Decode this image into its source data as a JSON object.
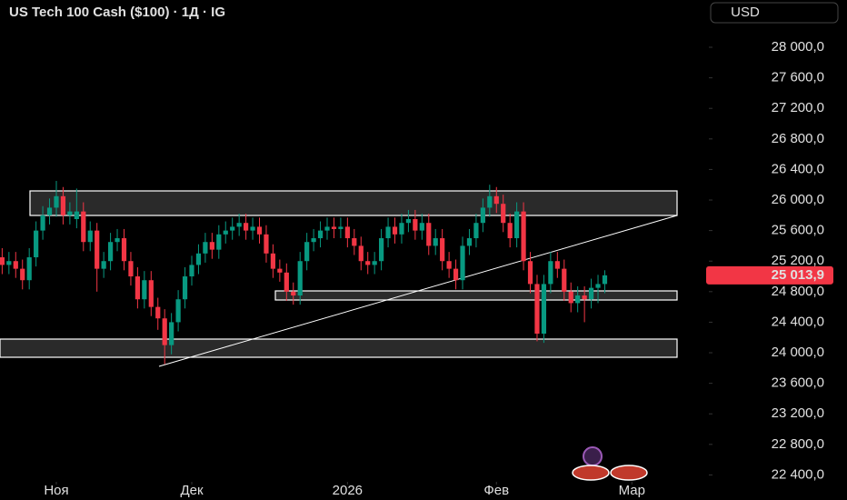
{
  "chart_data": {
    "type": "candlestick",
    "title": "US Tech 100 Cash ($100) · 1Д · IG",
    "currency": "USD",
    "up_color": "#089981",
    "down_color": "#f23645",
    "last_price": {
      "value": 25013.9,
      "label": "25 013,9"
    },
    "ylim": [
      22310,
      28619
    ],
    "yticks": [
      {
        "value": 22400,
        "label": "22 400,0"
      },
      {
        "value": 22800,
        "label": "22 800,0"
      },
      {
        "value": 23200,
        "label": "23 200,0"
      },
      {
        "value": 23600,
        "label": "23 600,0"
      },
      {
        "value": 24000,
        "label": "24 000,0"
      },
      {
        "value": 24400,
        "label": "24 400,0"
      },
      {
        "value": 24800,
        "label": "24 800,0"
      },
      {
        "value": 25200,
        "label": "25 200,0"
      },
      {
        "value": 25600,
        "label": "25 600,0"
      },
      {
        "value": 26000,
        "label": "26 000,0"
      },
      {
        "value": 26400,
        "label": "26 400,0"
      },
      {
        "value": 26800,
        "label": "26 800,0"
      },
      {
        "value": 27200,
        "label": "27 200,0"
      },
      {
        "value": 27600,
        "label": "27 600,0"
      },
      {
        "value": 28000,
        "label": "28 000,0"
      }
    ],
    "xlim": [
      -0.32,
      103.7
    ],
    "xticks": [
      {
        "value": 8,
        "label": "Ноя"
      },
      {
        "value": 28,
        "label": "Дек"
      },
      {
        "value": 51,
        "label": "2026"
      },
      {
        "value": 73,
        "label": "Фев"
      },
      {
        "value": 93,
        "label": "Мар"
      }
    ],
    "open": [
      25250,
      25150,
      25200,
      25100,
      24950,
      25250,
      25600,
      25800,
      25900,
      26050,
      25800,
      25750,
      25850,
      25450,
      25600,
      25100,
      25200,
      25450,
      25500,
      25200,
      25000,
      24700,
      24950,
      24600,
      24450,
      24100,
      24400,
      24700,
      25000,
      25150,
      25300,
      25450,
      25350,
      25550,
      25600,
      25650,
      25700,
      25600,
      25650,
      25550,
      25300,
      25100,
      25050,
      24800,
      24750,
      25200,
      25450,
      25500,
      25600,
      25650,
      25620,
      25650,
      25500,
      25400,
      25200,
      25150,
      25200,
      25500,
      25650,
      25550,
      25700,
      25750,
      25600,
      25700,
      25400,
      25500,
      25200,
      25100,
      24950,
      25400,
      25500,
      25700,
      25900,
      26050,
      25950,
      25700,
      25500,
      25850,
      25200,
      24900,
      24250,
      24900,
      25200,
      25100,
      24800,
      24650,
      24750,
      24700,
      24850,
      24900
    ],
    "high": [
      25370,
      25320,
      25320,
      25220,
      25370,
      25720,
      25920,
      26020,
      26250,
      26170,
      25970,
      26150,
      25970,
      25720,
      25700,
      25320,
      25570,
      25620,
      25620,
      25320,
      25120,
      25070,
      25070,
      24720,
      24570,
      24520,
      24820,
      25120,
      25270,
      25420,
      25570,
      25570,
      25670,
      25720,
      25770,
      25820,
      25820,
      25770,
      25770,
      25670,
      25420,
      25220,
      25170,
      24920,
      25320,
      25570,
      25620,
      25720,
      25770,
      25770,
      25770,
      25770,
      25620,
      25520,
      25320,
      25320,
      25620,
      25770,
      25770,
      25820,
      25870,
      25870,
      25820,
      25820,
      25620,
      25620,
      25320,
      25220,
      25520,
      25620,
      25820,
      26020,
      26200,
      26170,
      26070,
      25820,
      25970,
      25970,
      25320,
      25020,
      25020,
      25320,
      25320,
      25220,
      24920,
      24870,
      24870,
      24970,
      25020,
      25080
    ],
    "low": [
      25030,
      25030,
      24980,
      24830,
      24830,
      25130,
      25480,
      25680,
      25780,
      25680,
      25680,
      25630,
      25330,
      25330,
      24800,
      24980,
      25080,
      25330,
      25080,
      24880,
      24580,
      24580,
      24480,
      24300,
      23850,
      23980,
      24280,
      24580,
      24880,
      25030,
      25180,
      25230,
      25230,
      25430,
      25480,
      25530,
      25480,
      25480,
      25430,
      25180,
      24980,
      24930,
      24680,
      24630,
      24630,
      25080,
      25330,
      25380,
      25480,
      25500,
      25500,
      25380,
      25280,
      25080,
      25030,
      25030,
      25080,
      25380,
      25430,
      25430,
      25580,
      25480,
      25480,
      25280,
      25280,
      25080,
      24980,
      24830,
      24830,
      25280,
      25380,
      25580,
      25780,
      25830,
      25580,
      25380,
      25380,
      25080,
      24780,
      24150,
      24130,
      24780,
      24980,
      24680,
      24530,
      24530,
      24400,
      24580,
      24650,
      24780
    ],
    "close": [
      25150,
      25200,
      25100,
      24950,
      25250,
      25600,
      25800,
      25900,
      26050,
      25800,
      25850,
      25850,
      25450,
      25600,
      25100,
      25200,
      25450,
      25500,
      25200,
      25000,
      24700,
      24950,
      24600,
      24450,
      24100,
      24400,
      24700,
      25000,
      25150,
      25300,
      25450,
      25350,
      25550,
      25600,
      25650,
      25700,
      25600,
      25650,
      25550,
      25300,
      25100,
      25050,
      24800,
      24750,
      25200,
      25450,
      25500,
      25600,
      25650,
      25620,
      25650,
      25500,
      25400,
      25200,
      25150,
      25200,
      25500,
      25650,
      25550,
      25700,
      25750,
      25600,
      25700,
      25400,
      25500,
      25200,
      25100,
      24950,
      25400,
      25500,
      25700,
      25900,
      26050,
      25950,
      25700,
      25500,
      25850,
      25200,
      24900,
      24250,
      24900,
      25200,
      25100,
      24800,
      24650,
      24750,
      24700,
      24850,
      24900,
      25013.9
    ]
  }
}
